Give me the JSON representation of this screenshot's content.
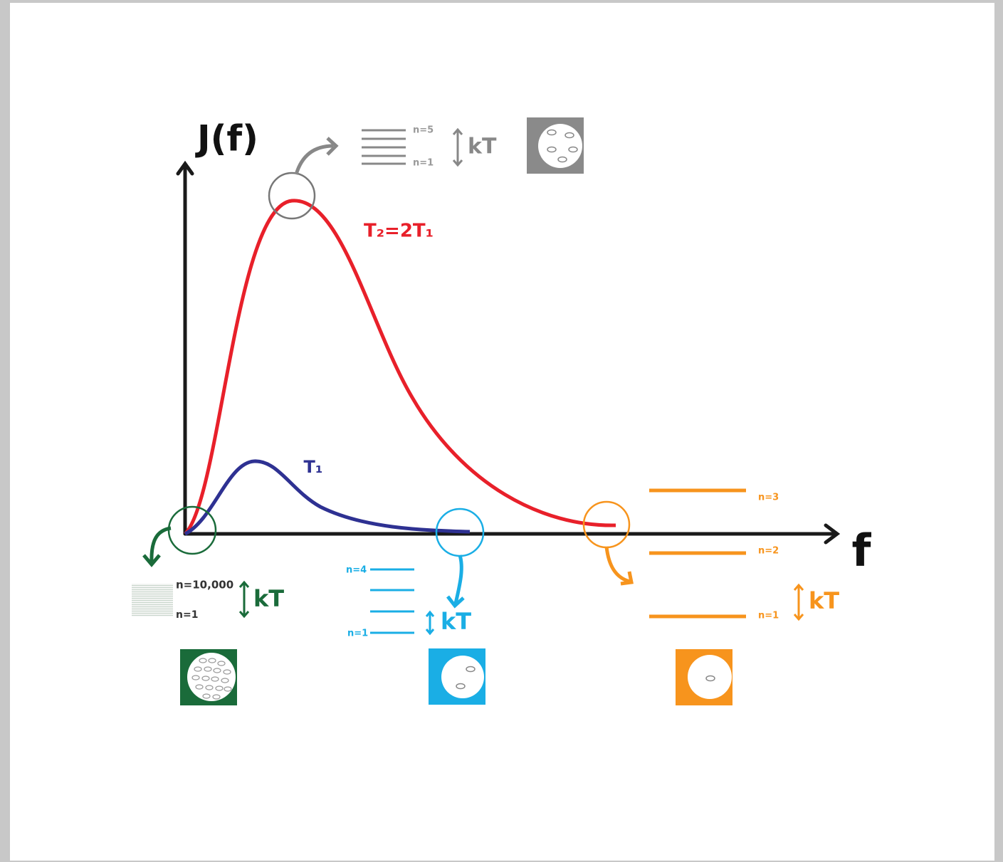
{
  "axes": {
    "y_label": "J(f)",
    "x_label": "f"
  },
  "curves": [
    {
      "label": "T₂=2T₁"
    },
    {
      "label": "T₁"
    }
  ],
  "insets": {
    "gray": {
      "top_level": "n=5",
      "bottom_level": "n=1",
      "gap": "kT"
    },
    "green": {
      "top_level": "n=10,000",
      "bottom_level": "n=1",
      "gap": "kT"
    },
    "blue": {
      "top_level": "n=4",
      "bottom_level": "n=1",
      "gap": "kT"
    },
    "orange": {
      "top_level": "n=3",
      "middle_level": "n=2",
      "bottom_level": "n=1",
      "gap": "kT"
    }
  }
}
